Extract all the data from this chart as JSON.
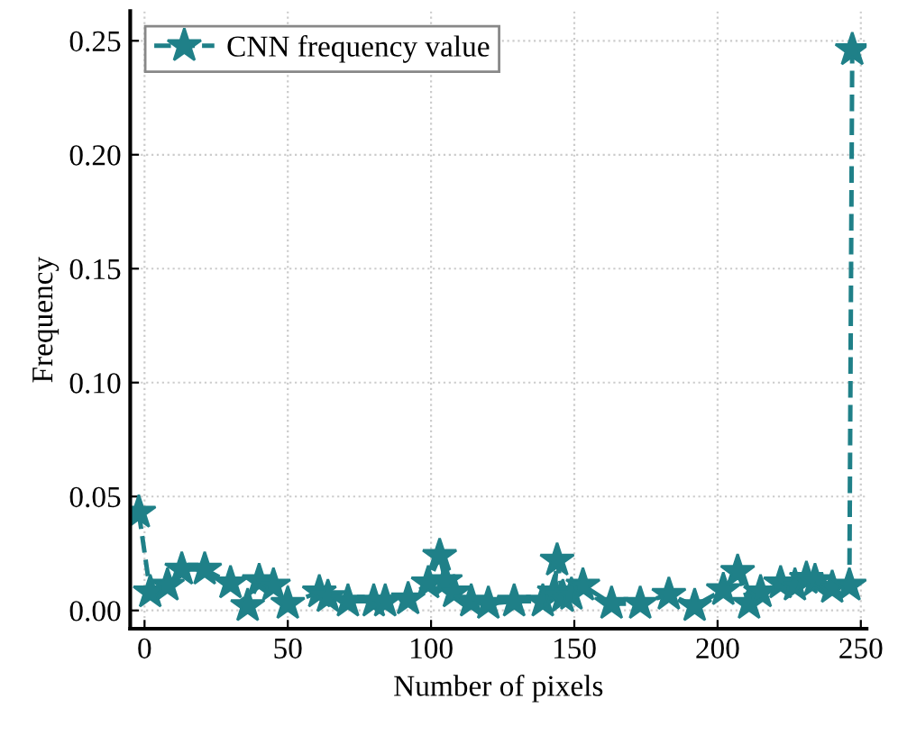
{
  "chart_data": {
    "type": "line",
    "xlabel": "Number of pixels",
    "ylabel": "Frequency",
    "xlim": [
      -5,
      252
    ],
    "ylim": [
      -0.008,
      0.263
    ],
    "xticks": [
      0,
      50,
      100,
      150,
      200,
      250
    ],
    "yticks": [
      {
        "value": 0,
        "label": "0.00"
      },
      {
        "value": 0.05,
        "label": "0.05"
      },
      {
        "value": 0.1,
        "label": "0.10"
      },
      {
        "value": 0.15,
        "label": "0.15"
      },
      {
        "value": 0.2,
        "label": "0.20"
      },
      {
        "value": 0.25,
        "label": "0.25"
      }
    ],
    "grid": true,
    "legend": "top left",
    "marker": "star",
    "line_style": "dashed",
    "series": [
      {
        "name": "CNN frequency value",
        "color": "#1f8088",
        "x": [
          -2,
          2,
          8,
          13,
          21,
          30,
          36,
          40,
          45,
          50,
          61,
          64,
          71,
          80,
          84,
          92,
          99,
          103,
          105,
          108,
          114,
          120,
          129,
          139,
          143,
          144,
          146,
          149,
          153,
          163,
          173,
          183,
          192,
          202,
          207,
          211,
          215,
          222,
          227,
          231,
          234,
          240,
          246,
          247
        ],
        "values": [
          0.043,
          0.008,
          0.011,
          0.018,
          0.018,
          0.012,
          0.002,
          0.013,
          0.011,
          0.003,
          0.008,
          0.006,
          0.004,
          0.004,
          0.004,
          0.005,
          0.012,
          0.024,
          0.013,
          0.008,
          0.004,
          0.003,
          0.004,
          0.004,
          0.008,
          0.022,
          0.006,
          0.007,
          0.011,
          0.003,
          0.003,
          0.007,
          0.002,
          0.009,
          0.017,
          0.003,
          0.008,
          0.012,
          0.011,
          0.014,
          0.013,
          0.01,
          0.011,
          0.246
        ]
      }
    ]
  }
}
